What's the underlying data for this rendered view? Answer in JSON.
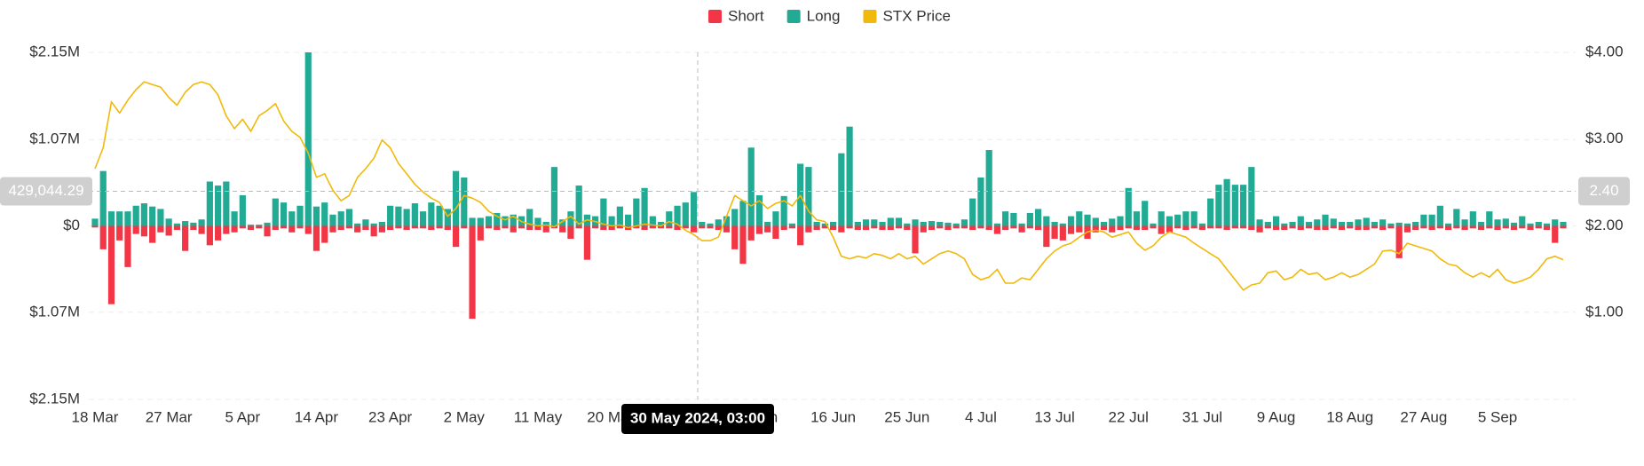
{
  "chart_data": {
    "type": "bar",
    "legend_position": "top",
    "grid": true,
    "categories": [
      "18 Mar",
      null,
      null,
      null,
      null,
      null,
      null,
      null,
      null,
      "27 Mar",
      null,
      null,
      null,
      null,
      null,
      null,
      null,
      null,
      "5 Apr",
      null,
      null,
      null,
      null,
      null,
      null,
      null,
      null,
      "14 Apr",
      null,
      null,
      null,
      null,
      null,
      null,
      null,
      null,
      "23 Apr",
      null,
      null,
      null,
      null,
      null,
      null,
      null,
      null,
      "2 May",
      null,
      null,
      null,
      null,
      null,
      null,
      null,
      null,
      "11 May",
      null,
      null,
      null,
      null,
      null,
      null,
      null,
      null,
      "20 May",
      null,
      null,
      null,
      null,
      null,
      null,
      null,
      null,
      "29 May",
      null,
      null,
      null,
      null,
      null,
      null,
      null,
      null,
      "7 Jun",
      null,
      null,
      null,
      null,
      null,
      null,
      null,
      null,
      "16 Jun",
      null,
      null,
      null,
      null,
      null,
      null,
      null,
      null,
      "25 Jun",
      null,
      null,
      null,
      null,
      null,
      null,
      null,
      null,
      "4 Jul",
      null,
      null,
      null,
      null,
      null,
      null,
      null,
      null,
      "13 Jul",
      null,
      null,
      null,
      null,
      null,
      null,
      null,
      null,
      "22 Jul",
      null,
      null,
      null,
      null,
      null,
      null,
      null,
      null,
      "31 Jul",
      null,
      null,
      null,
      null,
      null,
      null,
      null,
      null,
      "9 Aug",
      null,
      null,
      null,
      null,
      null,
      null,
      null,
      null,
      "18 Aug",
      null,
      null,
      null,
      null,
      null,
      null,
      null,
      null,
      "27 Aug",
      null,
      null,
      null,
      null,
      null,
      null,
      null,
      null,
      "5 Sep",
      null,
      null,
      null,
      null,
      null,
      null,
      null,
      null
    ],
    "series": [
      {
        "name": "Short",
        "color": "#f23645",
        "values": [
          -20000,
          -290000,
          -970000,
          -180000,
          -510000,
          -100000,
          -130000,
          -210000,
          -80000,
          -120000,
          -50000,
          -310000,
          -50000,
          -100000,
          -240000,
          -180000,
          -100000,
          -80000,
          -30000,
          -50000,
          -30000,
          -130000,
          -50000,
          -30000,
          -80000,
          -30000,
          -100000,
          -310000,
          -210000,
          -80000,
          -50000,
          -30000,
          -80000,
          -50000,
          -130000,
          -80000,
          -50000,
          -30000,
          -50000,
          -30000,
          -30000,
          -50000,
          -30000,
          -50000,
          -260000,
          -30000,
          -1150000,
          -180000,
          -30000,
          -50000,
          -30000,
          -80000,
          -30000,
          -50000,
          -50000,
          -80000,
          -30000,
          -80000,
          -160000,
          -30000,
          -420000,
          -30000,
          -50000,
          -50000,
          -30000,
          -50000,
          -30000,
          -50000,
          -30000,
          -30000,
          -30000,
          -50000,
          -30000,
          -80000,
          -30000,
          -30000,
          -50000,
          -80000,
          -290000,
          -470000,
          -180000,
          -100000,
          -80000,
          -160000,
          -50000,
          -30000,
          -240000,
          -80000,
          -50000,
          -30000,
          -50000,
          -80000,
          -30000,
          -50000,
          -50000,
          -30000,
          -50000,
          -50000,
          -30000,
          -50000,
          -340000,
          -80000,
          -50000,
          -30000,
          -50000,
          -30000,
          -30000,
          -50000,
          -30000,
          -50000,
          -100000,
          -50000,
          -30000,
          -80000,
          -30000,
          -50000,
          -260000,
          -160000,
          -180000,
          -100000,
          -80000,
          -160000,
          -80000,
          -50000,
          -80000,
          -50000,
          -30000,
          -50000,
          -50000,
          -30000,
          -100000,
          -80000,
          -30000,
          -50000,
          -30000,
          -50000,
          -30000,
          -30000,
          -50000,
          -30000,
          -30000,
          -50000,
          -80000,
          -30000,
          -50000,
          -50000,
          -30000,
          -50000,
          -30000,
          -50000,
          -50000,
          -30000,
          -50000,
          -30000,
          -50000,
          -50000,
          -30000,
          -50000,
          -30000,
          -400000,
          -80000,
          -50000,
          -30000,
          -50000,
          -30000,
          -50000,
          -30000,
          -50000,
          -30000,
          -50000,
          -30000,
          -50000,
          -30000,
          -50000,
          -30000,
          -50000,
          -30000,
          -50000,
          -210000,
          -30000
        ]
      },
      {
        "name": "Long",
        "color": "#22ab94",
        "values": [
          90000,
          680000,
          180000,
          180000,
          180000,
          250000,
          280000,
          240000,
          210000,
          90000,
          30000,
          60000,
          40000,
          80000,
          550000,
          500000,
          550000,
          180000,
          380000,
          15000,
          15000,
          40000,
          340000,
          290000,
          180000,
          250000,
          2150000,
          240000,
          290000,
          140000,
          180000,
          210000,
          30000,
          80000,
          30000,
          50000,
          250000,
          240000,
          210000,
          280000,
          180000,
          290000,
          250000,
          210000,
          680000,
          600000,
          100000,
          100000,
          120000,
          160000,
          120000,
          140000,
          120000,
          210000,
          100000,
          50000,
          730000,
          80000,
          180000,
          500000,
          140000,
          120000,
          340000,
          120000,
          240000,
          140000,
          340000,
          470000,
          120000,
          50000,
          180000,
          250000,
          290000,
          420000,
          50000,
          30000,
          80000,
          120000,
          210000,
          310000,
          970000,
          380000,
          50000,
          180000,
          370000,
          30000,
          770000,
          730000,
          50000,
          30000,
          50000,
          900000,
          1230000,
          50000,
          80000,
          80000,
          50000,
          100000,
          100000,
          30000,
          80000,
          50000,
          60000,
          50000,
          40000,
          30000,
          80000,
          340000,
          600000,
          940000,
          30000,
          180000,
          160000,
          30000,
          160000,
          210000,
          120000,
          50000,
          30000,
          120000,
          180000,
          140000,
          100000,
          50000,
          90000,
          120000,
          470000,
          180000,
          310000,
          30000,
          180000,
          120000,
          140000,
          180000,
          180000,
          30000,
          340000,
          510000,
          580000,
          510000,
          510000,
          730000,
          80000,
          50000,
          120000,
          30000,
          50000,
          120000,
          50000,
          80000,
          140000,
          90000,
          50000,
          50000,
          80000,
          100000,
          50000,
          80000,
          30000,
          40000,
          30000,
          50000,
          140000,
          140000,
          250000,
          30000,
          210000,
          80000,
          180000,
          50000,
          180000,
          80000,
          90000,
          40000,
          120000,
          30000,
          50000,
          30000,
          80000,
          50000
        ]
      },
      {
        "name": "STX Price",
        "color": "#f0b90b",
        "axis": "y2",
        "type": "line",
        "values": [
          2.66,
          2.9,
          3.43,
          3.3,
          3.45,
          3.57,
          3.66,
          3.63,
          3.6,
          3.48,
          3.39,
          3.54,
          3.63,
          3.66,
          3.63,
          3.51,
          3.27,
          3.12,
          3.23,
          3.09,
          3.27,
          3.33,
          3.41,
          3.21,
          3.09,
          3.02,
          2.84,
          2.56,
          2.6,
          2.41,
          2.29,
          2.35,
          2.56,
          2.66,
          2.78,
          2.99,
          2.9,
          2.72,
          2.6,
          2.48,
          2.39,
          2.32,
          2.27,
          2.11,
          2.2,
          2.35,
          2.32,
          2.27,
          2.17,
          2.11,
          2.07,
          2.11,
          2.05,
          2.02,
          2,
          2.01,
          1.99,
          2.05,
          2.11,
          2.02,
          2.07,
          2.05,
          2.02,
          2,
          2.01,
          1.98,
          2,
          2.02,
          2.01,
          2,
          2.05,
          2.02,
          1.95,
          1.9,
          1.83,
          1.83,
          1.87,
          2.11,
          2.35,
          2.29,
          2.23,
          2.29,
          2.2,
          2.26,
          2.29,
          2.23,
          2.35,
          2.17,
          2.07,
          2.05,
          1.87,
          1.65,
          1.62,
          1.65,
          1.63,
          1.68,
          1.66,
          1.62,
          1.68,
          1.62,
          1.65,
          1.56,
          1.62,
          1.68,
          1.71,
          1.68,
          1.62,
          1.44,
          1.38,
          1.41,
          1.5,
          1.34,
          1.34,
          1.4,
          1.38,
          1.5,
          1.62,
          1.71,
          1.77,
          1.8,
          1.87,
          1.93,
          1.95,
          1.93,
          1.87,
          1.9,
          1.93,
          1.8,
          1.72,
          1.77,
          1.87,
          1.93,
          1.9,
          1.87,
          1.8,
          1.74,
          1.68,
          1.62,
          1.5,
          1.38,
          1.26,
          1.32,
          1.34,
          1.46,
          1.48,
          1.38,
          1.41,
          1.5,
          1.44,
          1.46,
          1.38,
          1.41,
          1.46,
          1.41,
          1.44,
          1.5,
          1.56,
          1.71,
          1.72,
          1.68,
          1.8,
          1.77,
          1.74,
          1.71,
          1.62,
          1.56,
          1.54,
          1.46,
          1.41,
          1.46,
          1.41,
          1.5,
          1.38,
          1.34,
          1.37,
          1.41,
          1.5,
          1.62,
          1.65,
          1.61
        ]
      }
    ],
    "ylim": [
      -2150000,
      2150000
    ],
    "yticks": [
      {
        "value": -2150000,
        "label": "$2.15M"
      },
      {
        "value": -1070000,
        "label": "$1.07M"
      },
      {
        "value": 0,
        "label": "$0"
      },
      {
        "value": 1070000,
        "label": "$1.07M"
      },
      {
        "value": 2150000,
        "label": "$2.15M"
      }
    ],
    "y2lim": [
      0,
      4
    ],
    "y2ticks": [
      {
        "value": 1,
        "label": "$1.00"
      },
      {
        "value": 2,
        "label": "$2.00"
      },
      {
        "value": 3,
        "label": "$3.00"
      },
      {
        "value": 4,
        "label": "$4.00"
      }
    ],
    "crosshair": {
      "x_label": "30 May 2024, 03:00",
      "y": {
        "value": 429044.29,
        "label": "429,044.29"
      },
      "y2": {
        "value": 2.4,
        "label": "2.40"
      }
    }
  }
}
